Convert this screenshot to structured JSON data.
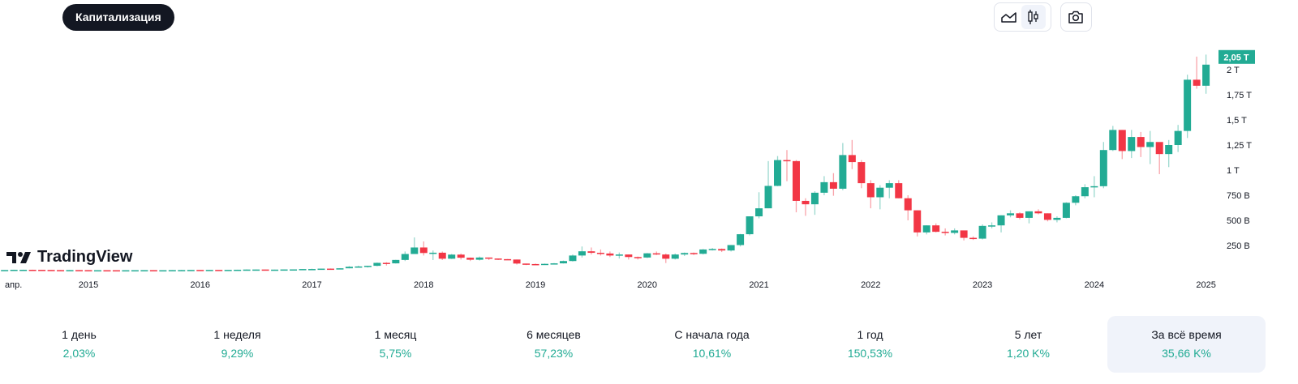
{
  "header": {
    "capitalization_label": "Капитализация"
  },
  "toolbar": {
    "line_icon": "area-chart-icon",
    "candle_icon": "candlestick-icon",
    "snapshot_icon": "camera-icon"
  },
  "logo": {
    "text": "TradingView"
  },
  "colors": {
    "up": "#22ab94",
    "down": "#f23645",
    "badge": "#22ab94",
    "dark": "#131722"
  },
  "chart_data": {
    "type": "candlestick",
    "interval": "1M",
    "start": "2014-04",
    "unit": "B",
    "price_label": "2,05 T",
    "ylim": [
      0,
      2150
    ],
    "y_ticks": [
      {
        "v": 250,
        "label": "250 B"
      },
      {
        "v": 500,
        "label": "500 B"
      },
      {
        "v": 750,
        "label": "750 B"
      },
      {
        "v": 1000,
        "label": "1 T"
      },
      {
        "v": 1250,
        "label": "1,25 T"
      },
      {
        "v": 1500,
        "label": "1,5 T"
      },
      {
        "v": 1750,
        "label": "1,75 T"
      },
      {
        "v": 2000,
        "label": "2 T"
      }
    ],
    "x_ticks": [
      {
        "i": 0,
        "label": "апр."
      },
      {
        "i": 9,
        "label": "2015"
      },
      {
        "i": 21,
        "label": "2016"
      },
      {
        "i": 33,
        "label": "2017"
      },
      {
        "i": 45,
        "label": "2018"
      },
      {
        "i": 57,
        "label": "2019"
      },
      {
        "i": 69,
        "label": "2020"
      },
      {
        "i": 81,
        "label": "2021"
      },
      {
        "i": 93,
        "label": "2022"
      },
      {
        "i": 105,
        "label": "2023"
      },
      {
        "i": 117,
        "label": "2024"
      },
      {
        "i": 129,
        "label": "2025"
      }
    ],
    "first_open": 5.5,
    "close": [
      5.6,
      8,
      8,
      7.6,
      6.5,
      5,
      4.5,
      5,
      4.4,
      3.1,
      3.6,
      3.5,
      3.2,
      3.4,
      3.7,
      4.2,
      3.4,
      3.5,
      4.7,
      5.1,
      6.5,
      5.7,
      6.8,
      6.5,
      7.0,
      8.4,
      10.3,
      10.7,
      9.0,
      9.6,
      11.3,
      11.9,
      15.5,
      15.7,
      19.4,
      17.3,
      22.8,
      37.7,
      41,
      47.5,
      77,
      72,
      106,
      165,
      230,
      175,
      178,
      118,
      159,
      128,
      108,
      130,
      120,
      114,
      110,
      70,
      65,
      60,
      67,
      72,
      95,
      150,
      192,
      177,
      170,
      150,
      160,
      135,
      130,
      172,
      160,
      118,
      160,
      175,
      167,
      210,
      215,
      200,
      254,
      362,
      540,
      620,
      843,
      1100,
      1090,
      694,
      660,
      775,
      880,
      815,
      1150,
      1080,
      870,
      730,
      825,
      870,
      720,
      600,
      380,
      450,
      386,
      375,
      400,
      326,
      318,
      445,
      450,
      550,
      570,
      525,
      590,
      570,
      505,
      525,
      675,
      740,
      830,
      840,
      1200,
      1400,
      1190,
      1330,
      1230,
      1280,
      1160,
      1250,
      1390,
      1900,
      1840,
      2050
    ],
    "high": [
      6,
      9,
      9,
      9,
      8,
      7,
      6,
      6,
      5.5,
      4.5,
      4,
      4,
      3.8,
      3.7,
      3.9,
      4.5,
      4.3,
      3.8,
      4.9,
      7,
      6.8,
      6.7,
      7,
      7,
      7.2,
      8.5,
      12,
      11,
      10,
      9.9,
      11.5,
      12,
      16,
      19,
      19.5,
      21,
      23,
      45,
      49,
      48,
      80,
      83,
      107,
      190,
      330,
      290,
      200,
      190,
      165,
      170,
      130,
      140,
      130,
      120,
      115,
      110,
      70,
      70,
      70,
      75,
      100,
      160,
      240,
      230,
      210,
      190,
      180,
      160,
      140,
      175,
      190,
      170,
      170,
      180,
      180,
      215,
      225,
      220,
      255,
      365,
      540,
      780,
      1090,
      1140,
      1200,
      1100,
      720,
      790,
      940,
      970,
      1270,
      1300,
      1100,
      900,
      850,
      900,
      900,
      750,
      600,
      450,
      470,
      420,
      420,
      390,
      340,
      460,
      480,
      550,
      600,
      580,
      590,
      610,
      570,
      540,
      680,
      750,
      860,
      940,
      1280,
      1440,
      1400,
      1400,
      1380,
      1390,
      1260,
      1300,
      1450,
      1950,
      2130,
      2150
    ],
    "low": [
      5,
      5,
      7,
      7,
      6,
      4.7,
      4.2,
      4.3,
      4,
      2.4,
      2.9,
      3.1,
      3,
      3.1,
      3.4,
      3.6,
      3.2,
      3.2,
      3.4,
      4.5,
      5.2,
      5.6,
      5.5,
      6.3,
      6.5,
      7,
      8.5,
      9.2,
      8.5,
      8.8,
      9.6,
      11,
      12,
      12,
      15,
      15,
      18,
      22,
      33,
      30,
      43,
      50,
      70,
      95,
      170,
      150,
      105,
      105,
      115,
      110,
      95,
      100,
      105,
      105,
      105,
      60,
      55,
      58,
      58,
      65,
      70,
      90,
      130,
      160,
      150,
      135,
      120,
      110,
      110,
      125,
      155,
      75,
      110,
      145,
      155,
      160,
      200,
      185,
      190,
      240,
      350,
      520,
      620,
      840,
      890,
      580,
      545,
      555,
      750,
      745,
      800,
      1010,
      820,
      620,
      610,
      720,
      720,
      500,
      340,
      360,
      380,
      350,
      360,
      300,
      305,
      310,
      420,
      380,
      530,
      510,
      470,
      560,
      490,
      480,
      520,
      650,
      720,
      730,
      820,
      1190,
      1110,
      1120,
      1130,
      1060,
      960,
      1030,
      1180,
      1320,
      1810,
      1760
    ]
  },
  "stats": [
    {
      "label": "1 день",
      "value": "2,03%"
    },
    {
      "label": "1 неделя",
      "value": "9,29%"
    },
    {
      "label": "1 месяц",
      "value": "5,75%"
    },
    {
      "label": "6 месяцев",
      "value": "57,23%"
    },
    {
      "label": "С начала года",
      "value": "10,61%"
    },
    {
      "label": "1 год",
      "value": "150,53%"
    },
    {
      "label": "5 лет",
      "value": "1,20 K%"
    },
    {
      "label": "За всё время",
      "value": "35,66 K%",
      "active": true
    }
  ]
}
